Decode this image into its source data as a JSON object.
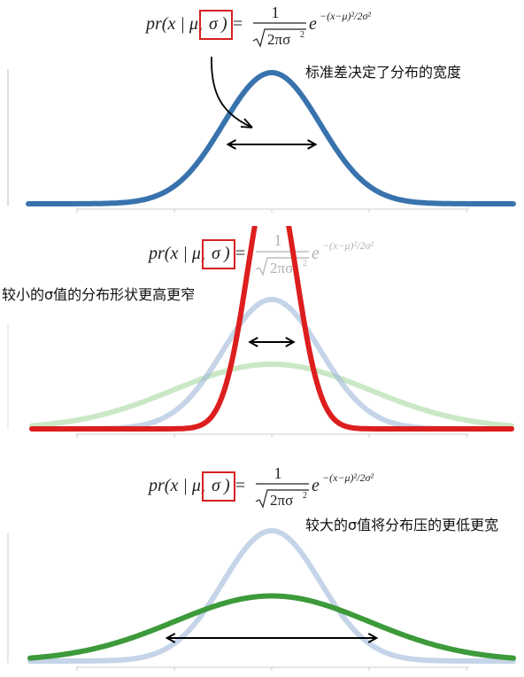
{
  "formula": {
    "prefix": "pr(x | μ,",
    "sigma": "σ",
    "suffix": ") =",
    "numerator": "1",
    "denominator": "2πσ",
    "denominator_exp": "2",
    "exponent": "−(x−μ)²/2σ²",
    "base": "e"
  },
  "panels": [
    {
      "caption": "标准差决定了分布的宽度",
      "curves": [
        {
          "sigma": 1.0,
          "color": "#3973ad",
          "opacity": 1
        }
      ],
      "arrow": {
        "from": -0.9,
        "to": 0.9
      }
    },
    {
      "caption": "较小的σ值的分布形状更高更窄",
      "curves": [
        {
          "sigma": 2.0,
          "color": "#a9d8a0",
          "opacity": 0.6
        },
        {
          "sigma": 1.0,
          "color": "#9fb8d9",
          "opacity": 0.6
        },
        {
          "sigma": 0.5,
          "color": "#dd1e1e",
          "opacity": 1
        }
      ],
      "arrow": {
        "from": -0.45,
        "to": 0.45
      }
    },
    {
      "caption": "较大的σ值将分布压的更低更宽",
      "curves": [
        {
          "sigma": 1.0,
          "color": "#9fb8d9",
          "opacity": 0.6
        },
        {
          "sigma": 2.0,
          "color": "#3d9a3a",
          "opacity": 1
        }
      ],
      "arrow": {
        "from": -2.15,
        "to": 2.15
      }
    }
  ]
}
